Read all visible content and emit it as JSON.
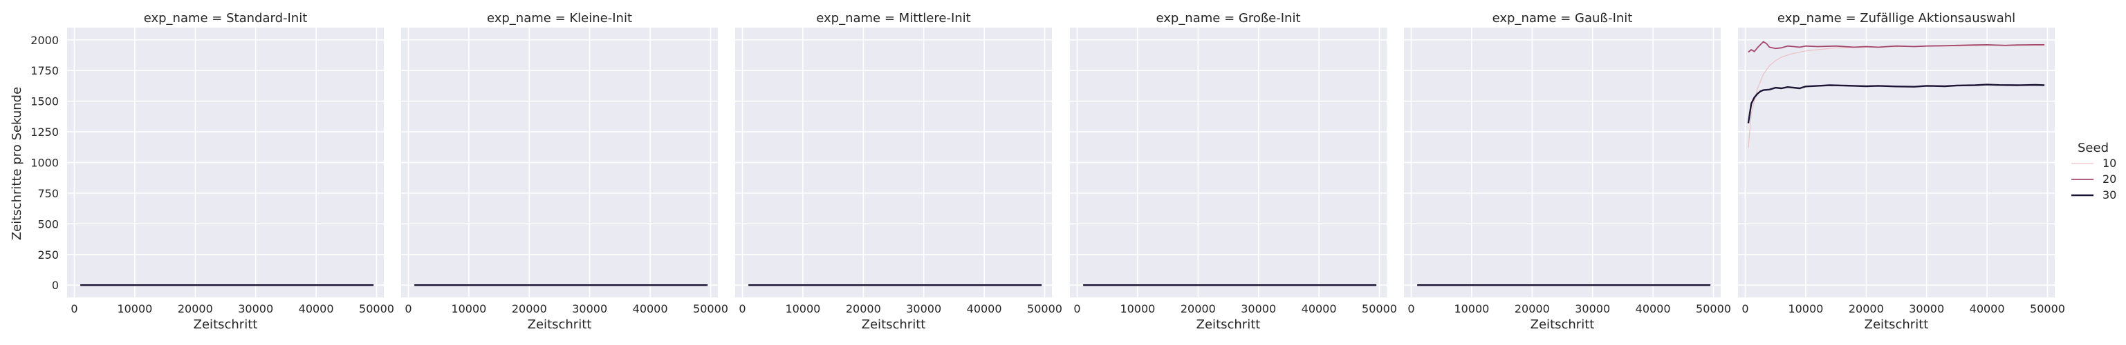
{
  "chart_data": {
    "type": "line",
    "facet_variable": "exp_name",
    "ylabel": "Zeitschritte pro Sekunde",
    "xlabel": "Zeitschritt",
    "xlim": [
      0,
      50000
    ],
    "ylim": [
      -100,
      2100
    ],
    "xticks": [
      0,
      10000,
      20000,
      30000,
      40000,
      50000
    ],
    "yticks": [
      0,
      250,
      500,
      750,
      1000,
      1250,
      1500,
      1750,
      2000
    ],
    "grid": true,
    "legend": {
      "title": "Seed",
      "placement": "right",
      "entries": [
        {
          "label": "10",
          "color": "#ebc1c4"
        },
        {
          "label": "20",
          "color": "#a6486c"
        },
        {
          "label": "30",
          "color": "#1d1535"
        }
      ]
    },
    "panels": [
      {
        "title": "exp_name = Standard-Init",
        "series": [
          {
            "seed": "10",
            "color": "#ebc1c4",
            "x": [
              1000,
              49500
            ],
            "y": [
              0,
              0
            ]
          },
          {
            "seed": "20",
            "color": "#a6486c",
            "x": [
              1000,
              49500
            ],
            "y": [
              0,
              0
            ]
          },
          {
            "seed": "30",
            "color": "#1d1535",
            "x": [
              1000,
              49500
            ],
            "y": [
              0,
              0
            ]
          }
        ]
      },
      {
        "title": "exp_name = Kleine-Init",
        "series": [
          {
            "seed": "10",
            "color": "#ebc1c4",
            "x": [
              1000,
              49500
            ],
            "y": [
              0,
              0
            ]
          },
          {
            "seed": "20",
            "color": "#a6486c",
            "x": [
              1000,
              49500
            ],
            "y": [
              0,
              0
            ]
          },
          {
            "seed": "30",
            "color": "#1d1535",
            "x": [
              1000,
              49500
            ],
            "y": [
              0,
              0
            ]
          }
        ]
      },
      {
        "title": "exp_name = Mittlere-Init",
        "series": [
          {
            "seed": "10",
            "color": "#ebc1c4",
            "x": [
              1000,
              49500
            ],
            "y": [
              0,
              0
            ]
          },
          {
            "seed": "20",
            "color": "#a6486c",
            "x": [
              1000,
              49500
            ],
            "y": [
              0,
              0
            ]
          },
          {
            "seed": "30",
            "color": "#1d1535",
            "x": [
              1000,
              49500
            ],
            "y": [
              0,
              0
            ]
          }
        ]
      },
      {
        "title": "exp_name = Große-Init",
        "series": [
          {
            "seed": "10",
            "color": "#ebc1c4",
            "x": [
              1000,
              49500
            ],
            "y": [
              0,
              0
            ]
          },
          {
            "seed": "20",
            "color": "#a6486c",
            "x": [
              1000,
              49500
            ],
            "y": [
              0,
              0
            ]
          },
          {
            "seed": "30",
            "color": "#1d1535",
            "x": [
              1000,
              49500
            ],
            "y": [
              0,
              0
            ]
          }
        ]
      },
      {
        "title": "exp_name = Gauß-Init",
        "series": [
          {
            "seed": "10",
            "color": "#ebc1c4",
            "x": [
              1000,
              49500
            ],
            "y": [
              0,
              0
            ]
          },
          {
            "seed": "20",
            "color": "#a6486c",
            "x": [
              1000,
              49500
            ],
            "y": [
              0,
              0
            ]
          },
          {
            "seed": "30",
            "color": "#1d1535",
            "x": [
              1000,
              49500
            ],
            "y": [
              0,
              0
            ]
          }
        ]
      },
      {
        "title": "exp_name = Zufällige Aktionsauswahl",
        "series": [
          {
            "seed": "10",
            "color": "#ebc1c4",
            "x": [
              500,
              1000,
              2000,
              3000,
              4000,
              5000,
              6000,
              8000,
              10000,
              12000,
              15000,
              20000,
              25000,
              30000,
              35000,
              40000,
              45000,
              49500
            ],
            "y": [
              1120,
              1400,
              1600,
              1720,
              1790,
              1830,
              1860,
              1890,
              1910,
              1920,
              1935,
              1940,
              1945,
              1950,
              1950,
              1955,
              1955,
              1955
            ]
          },
          {
            "seed": "20",
            "color": "#a6486c",
            "x": [
              500,
              1000,
              1500,
              2000,
              2500,
              3000,
              3500,
              4000,
              5000,
              6000,
              7000,
              8000,
              9000,
              10000,
              12000,
              15000,
              18000,
              20000,
              22000,
              25000,
              28000,
              30000,
              33000,
              35000,
              38000,
              40000,
              43000,
              45000,
              48000,
              49500
            ],
            "y": [
              1900,
              1920,
              1905,
              1935,
              1960,
              1985,
              1970,
              1940,
              1930,
              1935,
              1950,
              1945,
              1940,
              1950,
              1945,
              1950,
              1940,
              1945,
              1940,
              1950,
              1945,
              1950,
              1952,
              1955,
              1958,
              1960,
              1955,
              1958,
              1960,
              1960
            ]
          },
          {
            "seed": "30",
            "color": "#1d1535",
            "x": [
              500,
              1000,
              1500,
              2000,
              2500,
              3000,
              4000,
              5000,
              6000,
              7000,
              8000,
              9000,
              10000,
              12000,
              14000,
              16000,
              18000,
              20000,
              22000,
              25000,
              28000,
              30000,
              33000,
              35000,
              38000,
              40000,
              42000,
              45000,
              48000,
              49500
            ],
            "y": [
              1320,
              1480,
              1530,
              1560,
              1580,
              1590,
              1595,
              1610,
              1605,
              1615,
              1610,
              1605,
              1620,
              1625,
              1630,
              1628,
              1625,
              1622,
              1625,
              1620,
              1618,
              1625,
              1622,
              1628,
              1630,
              1635,
              1632,
              1630,
              1633,
              1630
            ]
          }
        ]
      }
    ]
  }
}
